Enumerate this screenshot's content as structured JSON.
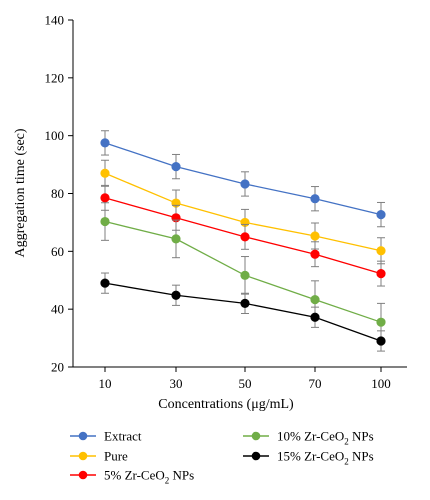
{
  "chart_data": {
    "type": "line",
    "x": [
      10,
      30,
      50,
      70,
      100
    ],
    "xlabel": "Concentrations (μg/mL)",
    "ylabel": "Aggregation time (sec)",
    "ylim": [
      20,
      140
    ],
    "yticks": [
      20,
      40,
      60,
      80,
      100,
      120,
      140
    ],
    "grid": false,
    "legend_position": "bottom",
    "series": [
      {
        "name": "Extract",
        "name_parts": [
          "Extract",
          "",
          ""
        ],
        "color": "#4472c4",
        "values": [
          97.5,
          89.3,
          83.3,
          78.2,
          72.7
        ],
        "errors": [
          4.2,
          4.2,
          4.2,
          4.2,
          4.2
        ]
      },
      {
        "name": "Pure",
        "name_parts": [
          "Pure",
          "",
          ""
        ],
        "color": "#ffc000",
        "values": [
          87.0,
          76.7,
          70.0,
          65.3,
          60.2
        ],
        "errors": [
          4.5,
          4.5,
          4.5,
          4.5,
          4.5
        ]
      },
      {
        "name": "5% Zr-CeO2 NPs",
        "name_parts": [
          "5% Zr-CeO",
          "2",
          " NPs"
        ],
        "color": "#ff0000",
        "values": [
          78.5,
          71.6,
          65.0,
          59.0,
          52.3
        ],
        "errors": [
          4.3,
          4.3,
          4.3,
          4.3,
          4.3
        ]
      },
      {
        "name": "10% Zr-CeO2 NPs",
        "name_parts": [
          "10% Zr-CeO",
          "2",
          " NPs"
        ],
        "color": "#70ad47",
        "values": [
          70.3,
          64.3,
          51.7,
          43.3,
          35.5
        ],
        "errors": [
          6.5,
          6.5,
          6.5,
          6.5,
          6.5
        ]
      },
      {
        "name": "15% Zr-CeO2 NPs",
        "name_parts": [
          "15% Zr-CeO",
          "2",
          " NPs"
        ],
        "color": "#000000",
        "values": [
          49.0,
          44.8,
          42.0,
          37.2,
          29.0
        ],
        "errors": [
          3.5,
          3.5,
          3.5,
          3.5,
          3.5
        ]
      }
    ]
  }
}
